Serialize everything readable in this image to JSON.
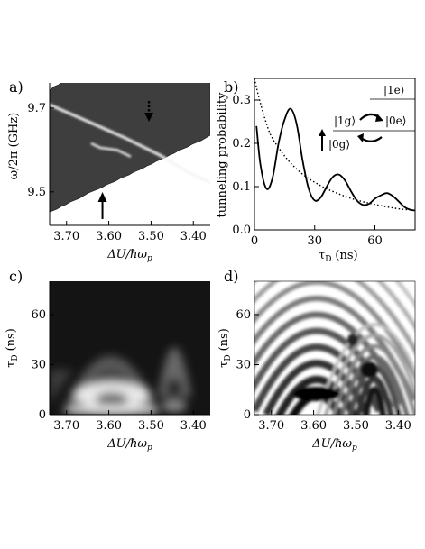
{
  "panels": {
    "a": {
      "letter": "a)"
    },
    "b": {
      "letter": "b)"
    },
    "c": {
      "letter": "c)"
    },
    "d": {
      "letter": "d)"
    }
  },
  "axes": {
    "detuning_label": "ΔU/ħω",
    "detuning_sub": "p",
    "freq_label": "ω/2π  (GHz)",
    "tau_label": "τ",
    "tau_sub": "D",
    "tau_unit": "(ns)",
    "prob_label": "tunneling probability"
  },
  "levels": {
    "one_e": "|1e⟩",
    "one_g": "|1g⟩",
    "zero_e": "|0e⟩",
    "zero_g": "|0g⟩"
  },
  "chart_data": [
    {
      "type": "heatmap",
      "panel": "a",
      "x_ticks": [
        "3.70",
        "3.60",
        "3.50",
        "3.40"
      ],
      "y_ticks": [
        "9.7",
        "9.5"
      ],
      "xlabel": "ΔU/ħω_p",
      "ylabel": "ω/2π (GHz)",
      "xlim": [
        3.74,
        3.36
      ],
      "ylim": [
        9.42,
        9.76
      ],
      "spectral_lines": [
        {
          "points": [
            [
              3.74,
              9.708
            ],
            [
              3.64,
              9.664
            ],
            [
              3.56,
              9.628
            ],
            [
              3.48,
              9.588
            ],
            [
              3.4,
              9.54
            ],
            [
              3.36,
              9.523
            ]
          ]
        },
        {
          "points": [
            [
              3.64,
              9.615
            ],
            [
              3.62,
              9.605
            ],
            [
              3.58,
              9.6
            ],
            [
              3.55,
              9.585
            ]
          ]
        }
      ],
      "arrows": [
        {
          "x": 3.505,
          "direction": "down",
          "style": "dotted"
        },
        {
          "x": 3.615,
          "direction": "up",
          "style": "solid"
        }
      ]
    },
    {
      "type": "line",
      "panel": "b",
      "x_ticks": [
        "0",
        "30",
        "60"
      ],
      "y_ticks": [
        "0.0",
        "0.1",
        "0.2",
        "0.3"
      ],
      "xlabel": "τ_D (ns)",
      "ylabel": "tunneling probability",
      "xlim": [
        0,
        80
      ],
      "ylim": [
        0,
        0.35
      ],
      "series": [
        {
          "style": "solid",
          "x": [
            1,
            3,
            6,
            9,
            12,
            15,
            18,
            21,
            24,
            27,
            30,
            33,
            36,
            39,
            42,
            45,
            48,
            51,
            54,
            57,
            60,
            63,
            66,
            69,
            72,
            75,
            78,
            80
          ],
          "y": [
            0.24,
            0.15,
            0.095,
            0.12,
            0.2,
            0.255,
            0.28,
            0.245,
            0.16,
            0.095,
            0.068,
            0.075,
            0.1,
            0.122,
            0.128,
            0.115,
            0.09,
            0.068,
            0.058,
            0.06,
            0.072,
            0.08,
            0.085,
            0.078,
            0.065,
            0.052,
            0.046,
            0.045
          ]
        },
        {
          "style": "dotted",
          "x": [
            0,
            2,
            5,
            8,
            12,
            16,
            20,
            25,
            30,
            35,
            40,
            45,
            50,
            55,
            60,
            65,
            70,
            75,
            80
          ],
          "y": [
            0.35,
            0.31,
            0.26,
            0.22,
            0.19,
            0.165,
            0.145,
            0.125,
            0.11,
            0.097,
            0.087,
            0.078,
            0.07,
            0.064,
            0.059,
            0.054,
            0.05,
            0.047,
            0.045
          ]
        }
      ]
    },
    {
      "type": "heatmap",
      "panel": "c",
      "x_ticks": [
        "3.70",
        "3.60",
        "3.50",
        "3.40"
      ],
      "y_ticks": [
        "0",
        "30",
        "60"
      ],
      "xlabel": "ΔU/ħω_p",
      "ylabel": "τ_D (ns)",
      "xlim": [
        3.74,
        3.36
      ],
      "ylim": [
        0,
        80
      ]
    },
    {
      "type": "heatmap",
      "panel": "d",
      "x_ticks": [
        "3.70",
        "3.60",
        "3.50",
        "3.40"
      ],
      "y_ticks": [
        "0",
        "30",
        "60"
      ],
      "xlabel": "ΔU/ħω_p",
      "ylabel": "τ_D (ns)",
      "xlim": [
        3.74,
        3.36
      ],
      "ylim": [
        0,
        80
      ]
    }
  ]
}
